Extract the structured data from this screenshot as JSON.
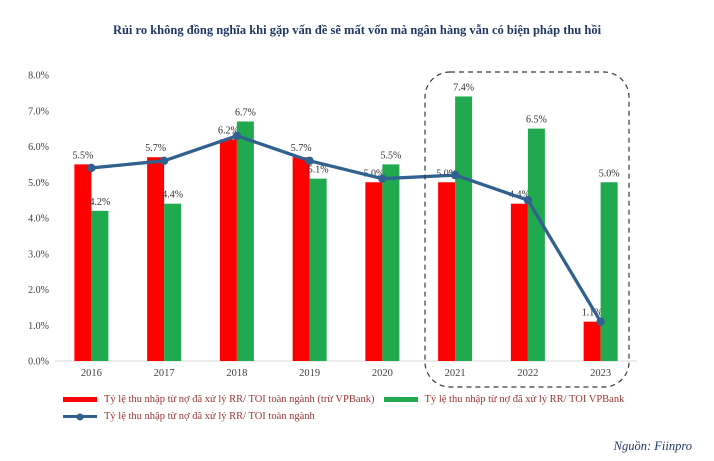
{
  "title": "Rủi ro không đồng nghĩa khi gặp vấn đề sẽ mất vốn mà ngân hàng vẫn có biện pháp thu hồi",
  "source": "Nguồn: Fiinpro",
  "colors": {
    "red_bar": "#FE0000",
    "green_bar": "#21A94F",
    "line": "#31618F",
    "title_text": "#1F3864",
    "legend_text": "#953735",
    "axis_text": "#404040",
    "label_text": "#303030",
    "axis_line": "#d9d9d9",
    "highlight_border": "#3a3a3a"
  },
  "chart_data": {
    "type": "bar",
    "subtype": "grouped bars with overlaid line",
    "categories": [
      "2016",
      "2017",
      "2018",
      "2019",
      "2020",
      "2021",
      "2022",
      "2023"
    ],
    "series": [
      {
        "name": "Tỷ lệ thu nhập từ nợ đã xử lý RR/ TOI toàn ngành (trừ VPBank)",
        "type": "bar",
        "color_key": "red_bar",
        "values": [
          5.5,
          5.7,
          6.2,
          5.7,
          5.0,
          5.0,
          4.4,
          1.1
        ],
        "labels": [
          "5.5%",
          "5.7%",
          "6.2%",
          "5.7%",
          "5.0%",
          "5.0%",
          "4.4%",
          "1.1%"
        ]
      },
      {
        "name": "Tỷ lệ thu nhập từ nợ đã xử lý RR/ TOI VPBank",
        "type": "bar",
        "color_key": "green_bar",
        "values": [
          4.2,
          4.4,
          6.7,
          5.1,
          5.5,
          7.4,
          6.5,
          5.0
        ],
        "labels": [
          "4.2%",
          "4.4%",
          "6.7%",
          "5.1%",
          "5.5%",
          "7.4%",
          "6.5%",
          "5.0%"
        ]
      },
      {
        "name": "Tỷ lệ thu nhập từ nợ đã xử lý RR/ TOI toàn ngành",
        "type": "line",
        "color_key": "line",
        "values": [
          5.4,
          5.6,
          6.3,
          5.6,
          5.1,
          5.2,
          4.5,
          1.1
        ]
      }
    ],
    "ylim": [
      0,
      8
    ],
    "yticks": [
      "8.0%",
      "7.0%",
      "6.0%",
      "5.0%",
      "4.0%",
      "3.0%",
      "2.0%",
      "1.0%",
      "0.0%"
    ],
    "grid": false,
    "legend_position": "bottom-left",
    "highlight_box_categories": [
      "2021",
      "2022",
      "2023"
    ]
  }
}
